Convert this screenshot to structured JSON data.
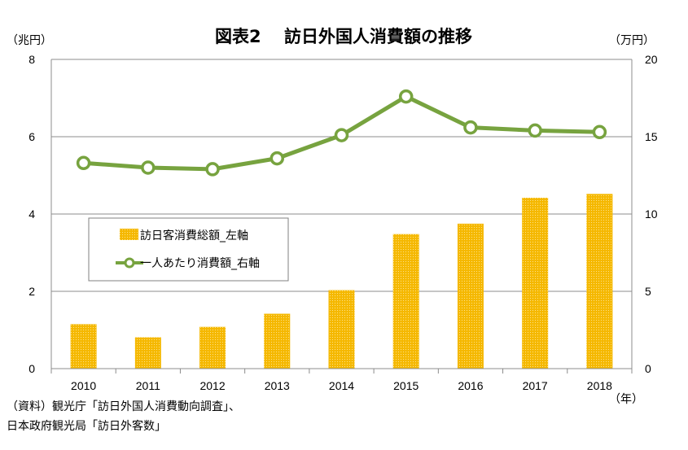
{
  "chart_data": {
    "type": "bar+line",
    "title": "図表2　 訪日外国人消費額の推移",
    "left_unit": "（兆円）",
    "right_unit": "（万円）",
    "x_unit": "（年）",
    "categories": [
      "2010",
      "2011",
      "2012",
      "2013",
      "2014",
      "2015",
      "2016",
      "2017",
      "2018"
    ],
    "left_axis": {
      "min": 0,
      "max": 8,
      "ticks": [
        "0",
        "2",
        "4",
        "6",
        "8"
      ]
    },
    "right_axis": {
      "min": 0,
      "max": 20,
      "ticks": [
        "0",
        "5",
        "10",
        "15",
        "20"
      ]
    },
    "series": [
      {
        "name": "訪日客消費総額_左軸",
        "type": "bar",
        "axis": "left",
        "color": "#F5B800",
        "values": [
          1.15,
          0.81,
          1.08,
          1.42,
          2.03,
          3.48,
          3.75,
          4.42,
          4.52
        ]
      },
      {
        "name": "一人あたり消費額_右軸",
        "type": "line",
        "axis": "right",
        "color": "#77A33F",
        "values": [
          13.3,
          13.0,
          12.9,
          13.6,
          15.1,
          17.6,
          15.6,
          15.4,
          15.3
        ]
      }
    ],
    "gridlines": true,
    "legend_position": "center-left"
  },
  "source_lines": [
    "（資料）観光庁「訪日外国人消費動向調査」、",
    "日本政府観光局「訪日外客数」"
  ]
}
